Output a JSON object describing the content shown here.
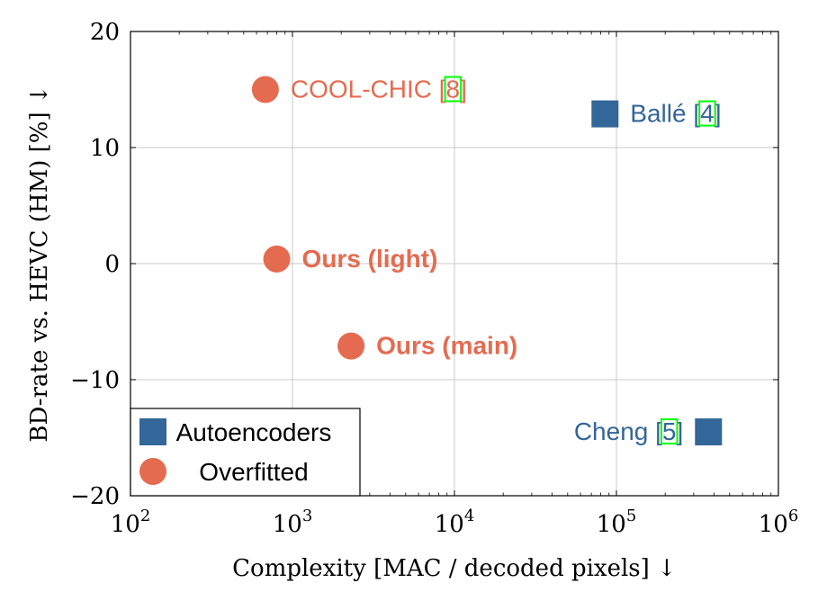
{
  "chart_data": {
    "type": "scatter",
    "xscale": "log",
    "xlim": [
      100,
      1000000
    ],
    "ylim": [
      -20,
      20
    ],
    "grid": true,
    "xlabel": "Complexity [MAC / decoded pixels] ↓",
    "ylabel": "BD-rate vs. HEVC (HM) [%] ↓",
    "x_ticks": [
      100,
      1000,
      10000,
      100000,
      1000000
    ],
    "x_tick_bases": [
      "10",
      "10",
      "10",
      "10",
      "10"
    ],
    "x_tick_exps": [
      "2",
      "3",
      "4",
      "5",
      "6"
    ],
    "y_ticks": [
      -20,
      -10,
      0,
      10,
      20
    ],
    "y_tick_labels": [
      "−20",
      "−10",
      "0",
      "10",
      "20"
    ],
    "legend": {
      "position": "bottom-left",
      "entries": [
        {
          "label": "Autoencoders",
          "marker": "square",
          "color": "#336699"
        },
        {
          "label": "Overfitted",
          "marker": "circle",
          "color": "#E56B50"
        }
      ]
    },
    "series": [
      {
        "name": "Autoencoders",
        "marker": "square",
        "color": "#336699",
        "points": [
          {
            "x": 85000,
            "y": 12.9,
            "label": "Ballé [",
            "ref": "4",
            "close": "]",
            "bold": false
          },
          {
            "x": 370000,
            "y": -14.5,
            "label": "Cheng [",
            "ref": "5",
            "close": "]",
            "bold": false
          }
        ]
      },
      {
        "name": "Overfitted",
        "marker": "circle",
        "color": "#E56B50",
        "points": [
          {
            "x": 680,
            "y": 15.0,
            "label": "COOL-CHIC [",
            "ref": "8",
            "close": "]",
            "bold": false
          },
          {
            "x": 800,
            "y": 0.4,
            "label": "Ours (light)",
            "ref": "",
            "close": "",
            "bold": true
          },
          {
            "x": 2300,
            "y": -7.1,
            "label": "Ours (main)",
            "ref": "",
            "close": "",
            "bold": true
          }
        ]
      }
    ]
  }
}
